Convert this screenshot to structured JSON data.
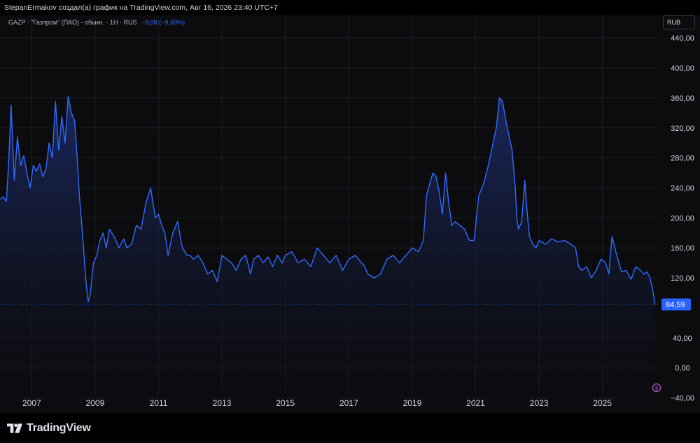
{
  "header": {
    "attribution": "StepanErmakov создал(а) график на TradingView.com, Авг 16, 2026 23:40 UTC+7"
  },
  "legend": {
    "symbol": "GAZP · \"Газпром\" (ПАО) - обыкн. · 1Н · RUS",
    "change": "−9,08 (−9,69%)"
  },
  "currency_button": "RUB",
  "last_price_label": "84,59",
  "footer": {
    "brand": "TradingView"
  },
  "colors": {
    "line": "#2f6bff",
    "fill_top": "#1c2d6e",
    "background": "#0c0c0f",
    "price_badge": "#2962ff"
  },
  "chart_data": {
    "type": "area",
    "title": "",
    "xlabel": "",
    "ylabel": "",
    "y_tick_labels": [
      "440,00",
      "400,00",
      "360,00",
      "320,00",
      "280,00",
      "240,00",
      "200,00",
      "160,00",
      "120,00",
      "40,00",
      "0,00",
      "−40,00"
    ],
    "y_tick_values": [
      440,
      400,
      360,
      320,
      280,
      240,
      200,
      160,
      120,
      40,
      0,
      -40
    ],
    "x_tick_labels": [
      "2007",
      "2009",
      "2011",
      "2013",
      "2015",
      "2017",
      "2019",
      "2021",
      "2023",
      "2025"
    ],
    "x_tick_values": [
      2007,
      2009,
      2011,
      2013,
      2015,
      2017,
      2019,
      2021,
      2023,
      2025
    ],
    "xlim": [
      2006.0,
      2026.75
    ],
    "ylim": [
      -60,
      470
    ],
    "last_value": 84.59,
    "series": [
      {
        "x": [
          2006.0,
          2006.1,
          2006.2,
          2006.27,
          2006.35,
          2006.45,
          2006.55,
          2006.65,
          2006.75,
          2006.85,
          2006.95,
          2007.05,
          2007.15,
          2007.25,
          2007.35,
          2007.45,
          2007.55,
          2007.65,
          2007.75,
          2007.85,
          2007.95,
          2008.05,
          2008.15,
          2008.25,
          2008.35,
          2008.45,
          2008.5,
          2008.6,
          2008.7,
          2008.78,
          2008.85,
          2008.95,
          2009.05,
          2009.15,
          2009.25,
          2009.35,
          2009.45,
          2009.6,
          2009.75,
          2009.9,
          2010.0,
          2010.15,
          2010.3,
          2010.45,
          2010.6,
          2010.75,
          2010.9,
          2011.0,
          2011.1,
          2011.2,
          2011.3,
          2011.45,
          2011.6,
          2011.75,
          2011.9,
          2012.0,
          2012.1,
          2012.25,
          2012.4,
          2012.55,
          2012.7,
          2012.85,
          2013.0,
          2013.15,
          2013.3,
          2013.45,
          2013.6,
          2013.75,
          2013.9,
          2014.0,
          2014.15,
          2014.3,
          2014.45,
          2014.6,
          2014.75,
          2014.9,
          2015.0,
          2015.2,
          2015.4,
          2015.6,
          2015.8,
          2016.0,
          2016.2,
          2016.4,
          2016.6,
          2016.8,
          2017.0,
          2017.2,
          2017.4,
          2017.5,
          2017.6,
          2017.8,
          2018.0,
          2018.2,
          2018.4,
          2018.6,
          2018.8,
          2019.0,
          2019.2,
          2019.35,
          2019.45,
          2019.55,
          2019.65,
          2019.75,
          2019.85,
          2019.95,
          2020.05,
          2020.15,
          2020.25,
          2020.35,
          2020.5,
          2020.65,
          2020.8,
          2020.95,
          2021.1,
          2021.25,
          2021.4,
          2021.55,
          2021.65,
          2021.75,
          2021.85,
          2021.95,
          2022.05,
          2022.15,
          2022.25,
          2022.3,
          2022.35,
          2022.45,
          2022.55,
          2022.6,
          2022.65,
          2022.7,
          2022.75,
          2022.8,
          2022.9,
          2023.0,
          2023.2,
          2023.4,
          2023.6,
          2023.8,
          2024.0,
          2024.15,
          2024.25,
          2024.35,
          2024.5,
          2024.65,
          2024.8,
          2024.95,
          2025.1,
          2025.2,
          2025.3,
          2025.45,
          2025.6,
          2025.75,
          2025.9,
          2026.05,
          2026.2,
          2026.3,
          2026.4,
          2026.5,
          2026.6,
          2026.65
        ],
        "y": [
          225,
          228,
          222,
          270,
          350,
          250,
          308,
          270,
          283,
          260,
          240,
          270,
          262,
          272,
          255,
          265,
          300,
          280,
          355,
          290,
          335,
          300,
          362,
          340,
          330,
          270,
          230,
          180,
          120,
          88,
          100,
          140,
          150,
          170,
          180,
          160,
          185,
          175,
          160,
          172,
          160,
          165,
          190,
          185,
          220,
          240,
          200,
          205,
          190,
          180,
          150,
          180,
          195,
          160,
          150,
          150,
          145,
          150,
          140,
          125,
          130,
          115,
          150,
          145,
          140,
          130,
          145,
          150,
          125,
          145,
          150,
          140,
          148,
          135,
          150,
          140,
          150,
          155,
          140,
          145,
          135,
          160,
          150,
          140,
          150,
          130,
          145,
          150,
          140,
          135,
          125,
          120,
          125,
          145,
          150,
          140,
          150,
          160,
          155,
          170,
          230,
          245,
          260,
          255,
          235,
          205,
          260,
          220,
          190,
          195,
          190,
          185,
          170,
          170,
          230,
          245,
          270,
          300,
          320,
          360,
          355,
          330,
          310,
          290,
          240,
          200,
          185,
          195,
          250,
          220,
          195,
          175,
          170,
          165,
          160,
          170,
          165,
          172,
          168,
          170,
          165,
          160,
          135,
          130,
          135,
          120,
          130,
          145,
          140,
          125,
          175,
          150,
          128,
          130,
          118,
          135,
          130,
          125,
          128,
          120,
          100,
          84.59
        ]
      }
    ]
  }
}
